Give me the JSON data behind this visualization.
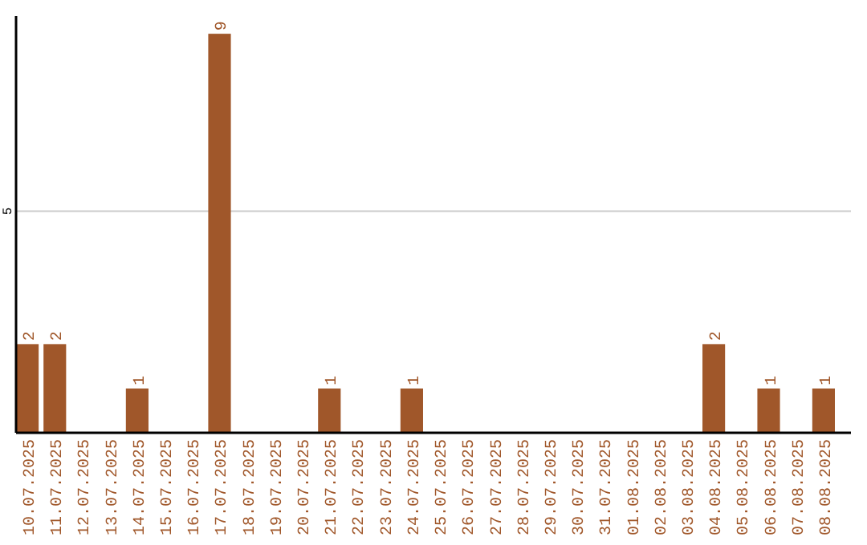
{
  "chart_data": {
    "type": "bar",
    "categories": [
      "10.07.2025",
      "11.07.2025",
      "12.07.2025",
      "13.07.2025",
      "14.07.2025",
      "15.07.2025",
      "16.07.2025",
      "17.07.2025",
      "18.07.2025",
      "19.07.2025",
      "20.07.2025",
      "21.07.2025",
      "22.07.2025",
      "23.07.2025",
      "24.07.2025",
      "25.07.2025",
      "26.07.2025",
      "27.07.2025",
      "28.07.2025",
      "29.07.2025",
      "30.07.2025",
      "31.07.2025",
      "01.08.2025",
      "02.08.2025",
      "03.08.2025",
      "04.08.2025",
      "05.08.2025",
      "06.08.2025",
      "07.08.2025",
      "08.08.2025"
    ],
    "values": [
      2,
      2,
      0,
      0,
      1,
      0,
      0,
      9,
      0,
      0,
      0,
      1,
      0,
      0,
      1,
      0,
      0,
      0,
      0,
      0,
      0,
      0,
      0,
      0,
      0,
      2,
      0,
      1,
      0,
      1
    ],
    "value_labels": [
      "2",
      "2",
      null,
      null,
      "1",
      null,
      null,
      "9",
      null,
      null,
      null,
      "1",
      null,
      null,
      "1",
      null,
      null,
      null,
      null,
      null,
      null,
      null,
      null,
      null,
      null,
      "2",
      null,
      "1",
      null,
      "1"
    ],
    "color": "#a0572a",
    "ylim": [
      0,
      9.4
    ],
    "yticks": [
      5
    ],
    "grid": "y"
  }
}
